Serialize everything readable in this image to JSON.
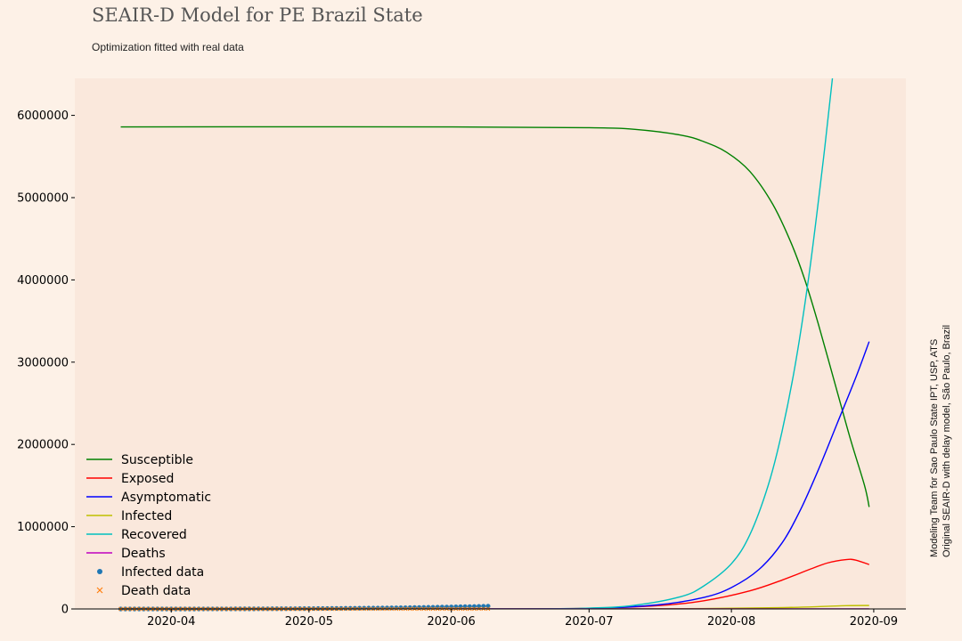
{
  "header": {
    "title": "SEAIR-D Model for PE Brazil State",
    "subtitle": "Optimization fitted with real data"
  },
  "side_note": {
    "line1": "Modeling Team for Sao Paulo State IPT, USP, ATS",
    "line2": "Original SEAIR-D with delay model, São Paulo, Brazil"
  },
  "colors": {
    "page_background": "#fdf1e7",
    "plot_background": "#fae8dc",
    "susceptible": "#008000",
    "exposed": "#ff0000",
    "asymptomatic": "#0000ff",
    "infected": "#bfbf00",
    "recovered": "#00bfbf",
    "deaths": "#bf00bf",
    "infected_data": "#1f77b4",
    "death_data": "#ff7f0e"
  },
  "chart_data": {
    "type": "line",
    "title": "SEAIR-D Model for PE Brazil State",
    "subtitle": "Optimization fitted with real data",
    "xlabel": "",
    "ylabel": "",
    "x_range": [
      "2020-03-11",
      "2020-09-08"
    ],
    "ylim": [
      0,
      6450000
    ],
    "grid": false,
    "legend_position": "lower-left",
    "x_ticks": [
      "2020-04",
      "2020-05",
      "2020-06",
      "2020-07",
      "2020-08",
      "2020-09"
    ],
    "y_ticks": [
      "0",
      "1000000",
      "2000000",
      "3000000",
      "4000000",
      "5000000",
      "6000000"
    ],
    "series": [
      {
        "name": "Susceptible",
        "color": "#008000",
        "kind": "line",
        "points": [
          [
            "2020-03-21",
            5860000
          ],
          [
            "2020-06-01",
            5860000
          ],
          [
            "2020-07-01",
            5850000
          ],
          [
            "2020-07-11",
            5830000
          ],
          [
            "2020-07-21",
            5760000
          ],
          [
            "2020-07-26",
            5680000
          ],
          [
            "2020-07-31",
            5550000
          ],
          [
            "2020-08-05",
            5320000
          ],
          [
            "2020-08-10",
            4920000
          ],
          [
            "2020-08-14",
            4450000
          ],
          [
            "2020-08-17",
            4000000
          ],
          [
            "2020-08-20",
            3450000
          ],
          [
            "2020-08-24",
            2650000
          ],
          [
            "2020-08-27",
            2050000
          ],
          [
            "2020-08-30",
            1500000
          ],
          [
            "2020-08-31",
            1240000
          ]
        ]
      },
      {
        "name": "Exposed",
        "color": "#ff0000",
        "kind": "line",
        "points": [
          [
            "2020-03-21",
            0
          ],
          [
            "2020-06-11",
            0
          ],
          [
            "2020-07-01",
            8000
          ],
          [
            "2020-07-16",
            40000
          ],
          [
            "2020-07-26",
            100000
          ],
          [
            "2020-08-05",
            220000
          ],
          [
            "2020-08-12",
            350000
          ],
          [
            "2020-08-18",
            480000
          ],
          [
            "2020-08-22",
            560000
          ],
          [
            "2020-08-26",
            600000
          ],
          [
            "2020-08-28",
            595000
          ],
          [
            "2020-08-31",
            540000
          ]
        ]
      },
      {
        "name": "Asymptomatic",
        "color": "#0000ff",
        "kind": "line",
        "points": [
          [
            "2020-03-21",
            0
          ],
          [
            "2020-06-11",
            0
          ],
          [
            "2020-07-01",
            6000
          ],
          [
            "2020-07-16",
            50000
          ],
          [
            "2020-07-26",
            140000
          ],
          [
            "2020-08-01",
            260000
          ],
          [
            "2020-08-07",
            480000
          ],
          [
            "2020-08-12",
            800000
          ],
          [
            "2020-08-16",
            1200000
          ],
          [
            "2020-08-20",
            1700000
          ],
          [
            "2020-08-24",
            2250000
          ],
          [
            "2020-08-28",
            2800000
          ],
          [
            "2020-08-31",
            3250000
          ]
        ]
      },
      {
        "name": "Infected",
        "color": "#bfbf00",
        "kind": "line",
        "points": [
          [
            "2020-03-21",
            0
          ],
          [
            "2020-07-01",
            500
          ],
          [
            "2020-07-26",
            5000
          ],
          [
            "2020-08-11",
            15000
          ],
          [
            "2020-08-21",
            30000
          ],
          [
            "2020-08-26",
            40000
          ],
          [
            "2020-08-31",
            42000
          ]
        ]
      },
      {
        "name": "Recovered",
        "color": "#00bfbf",
        "kind": "line",
        "points": [
          [
            "2020-03-21",
            0
          ],
          [
            "2020-06-11",
            0
          ],
          [
            "2020-07-01",
            10000
          ],
          [
            "2020-07-11",
            45000
          ],
          [
            "2020-07-21",
            150000
          ],
          [
            "2020-07-26",
            280000
          ],
          [
            "2020-08-01",
            550000
          ],
          [
            "2020-08-05",
            900000
          ],
          [
            "2020-08-09",
            1500000
          ],
          [
            "2020-08-12",
            2150000
          ],
          [
            "2020-08-15",
            3000000
          ],
          [
            "2020-08-18",
            4100000
          ],
          [
            "2020-08-21",
            5450000
          ],
          [
            "2020-08-23",
            6450000
          ]
        ]
      },
      {
        "name": "Deaths",
        "color": "#bf00bf",
        "kind": "line",
        "points": [
          [
            "2020-03-21",
            0
          ],
          [
            "2020-08-31",
            0
          ]
        ]
      },
      {
        "name": "Infected data",
        "color": "#1f77b4",
        "kind": "points",
        "marker": "circle",
        "x_start": "2020-03-21",
        "x_end": "2020-06-09",
        "y_start": 0,
        "y_end": 34000
      },
      {
        "name": "Death data",
        "color": "#ff7f0e",
        "kind": "points",
        "marker": "x",
        "x_start": "2020-03-21",
        "x_end": "2020-06-09",
        "y_start": 0,
        "y_end": 2000
      }
    ]
  }
}
